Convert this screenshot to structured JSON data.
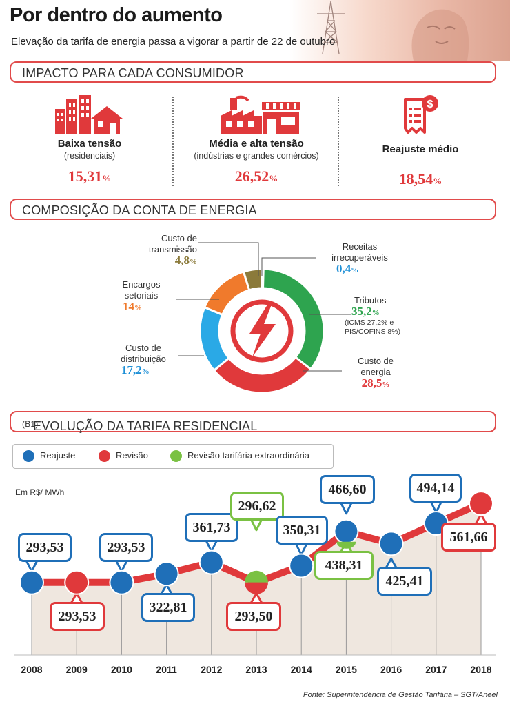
{
  "header": {
    "title": "Por dentro do aumento",
    "subtitle": "Elevação da tarifa de energia passa a vigorar a partir de 22 de outubro"
  },
  "sections": {
    "impact": "IMPACTO PARA CADA CONSUMIDOR",
    "composition": "COMPOSIÇÃO DA CONTA DE ENERGIA",
    "evolution": "EVOLUÇÃO DA TARIFA RESIDENCIAL",
    "evolution_suffix": "(B1)"
  },
  "impact": [
    {
      "label": "Baixa tensão",
      "sub": "(residenciais)",
      "value": "15,31",
      "unit": "%"
    },
    {
      "label": "Média e alta tensão",
      "sub": "(indústrias e grandes comércios)",
      "value": "26,52",
      "unit": "%"
    },
    {
      "label": "Reajuste médio",
      "sub": "",
      "value": "18,54",
      "unit": "%"
    }
  ],
  "composition": {
    "slices": [
      {
        "name": "Custo de transmissão",
        "line1": "Custo de",
        "line2": "transmissão",
        "value": 4.8,
        "label": "4,8",
        "color": "#8b7a3a"
      },
      {
        "name": "Receitas irrecuperáveis",
        "line1": "Receitas",
        "line2": "irrecuperáveis",
        "value": 0.4,
        "label": "0,4",
        "color": "#1d8fd6"
      },
      {
        "name": "Tributos",
        "line1": "Tributos",
        "line2": "",
        "value": 35.2,
        "label": "35,2",
        "color": "#2ea44f",
        "note1": "(ICMS 27,2% e",
        "note2": "PIS/COFINS 8%)"
      },
      {
        "name": "Custo de energia",
        "line1": "Custo de",
        "line2": "energia",
        "value": 28.5,
        "label": "28,5",
        "color": "#e0393b"
      },
      {
        "name": "Custo de distribuição",
        "line1": "Custo de",
        "line2": "distribuição",
        "value": 17.2,
        "label": "17,2",
        "color": "#2aa9e6"
      },
      {
        "name": "Encargos setoriais",
        "line1": "Encargos",
        "line2": "setoriais",
        "value": 14,
        "label": "14",
        "color": "#f07a2c"
      }
    ],
    "unit": "%"
  },
  "legend": {
    "reajuste": "Reajuste",
    "revisao": "Revisão",
    "extra": "Revisão tarifária extraordinária",
    "colors": {
      "reajuste": "#1f6fb8",
      "revisao": "#e0393b",
      "extra": "#7ac143"
    }
  },
  "chart_data": {
    "type": "line",
    "title": "EVOLUÇÃO DA TARIFA RESIDENCIAL (B1)",
    "ylabel": "Em R$/ MWh",
    "x": [
      "2008",
      "2009",
      "2010",
      "2011",
      "2012",
      "2013",
      "2014",
      "2015",
      "2016",
      "2017",
      "2018"
    ],
    "points": [
      {
        "year": "2008",
        "value": "293,53",
        "type": "reajuste"
      },
      {
        "year": "2009",
        "value": "293,53",
        "type": "revisao"
      },
      {
        "year": "2010",
        "value": "293,53",
        "type": "reajuste"
      },
      {
        "year": "2011",
        "value": "322,81",
        "type": "reajuste"
      },
      {
        "year": "2012",
        "value": "361,73",
        "type": "reajuste"
      },
      {
        "year": "2013",
        "value": "293,50",
        "type": "revisao"
      },
      {
        "year": "2013",
        "value": "296,62",
        "type": "extra"
      },
      {
        "year": "2014",
        "value": "350,31",
        "type": "reajuste"
      },
      {
        "year": "2015",
        "value": "438,31",
        "type": "extra"
      },
      {
        "year": "2015",
        "value": "466,60",
        "type": "reajuste"
      },
      {
        "year": "2016",
        "value": "425,41",
        "type": "reajuste"
      },
      {
        "year": "2017",
        "value": "494,14",
        "type": "reajuste"
      },
      {
        "year": "2018",
        "value": "561,66",
        "type": "revisao"
      }
    ]
  },
  "source": "Fonte: Superintendência de Gestão Tarifária – SGT/Aneel"
}
